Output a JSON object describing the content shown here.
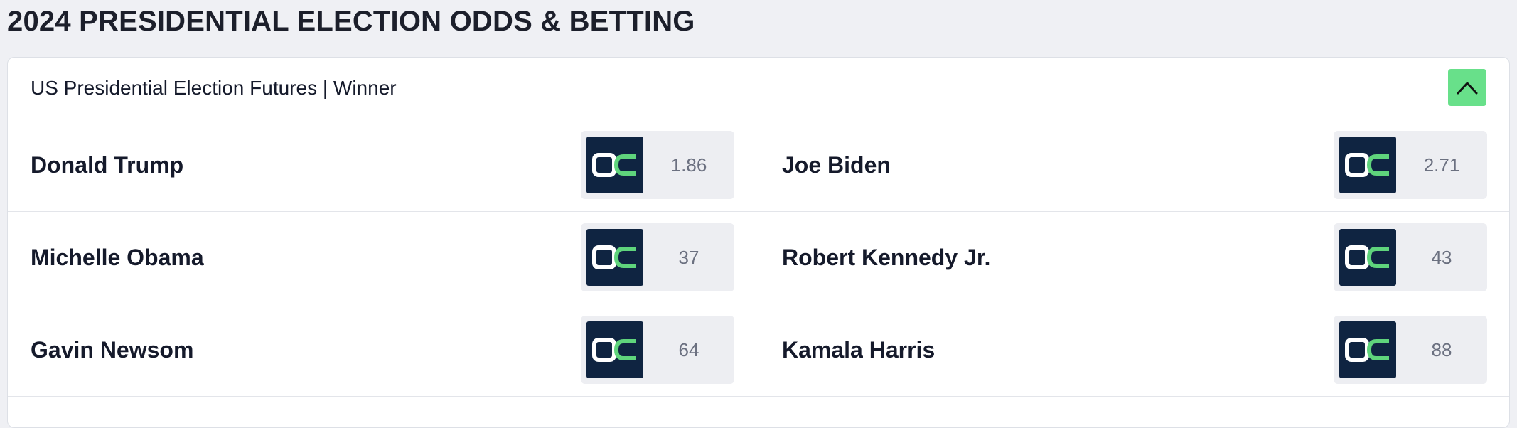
{
  "page": {
    "title": "2024 PRESIDENTIAL ELECTION ODDS & BETTING"
  },
  "market": {
    "title": "US Presidential Election Futures | Winner",
    "collapse_icon": "chevron-up-icon",
    "sportsbook_logo": "oc-logo-icon",
    "colors": {
      "accent": "#68e08a",
      "logo_bg": "#0f2441",
      "logo_green": "#5fd47c",
      "odds_bg": "#edeef2"
    },
    "rows": [
      [
        {
          "name": "Donald Trump",
          "odds": "1.86"
        },
        {
          "name": "Joe Biden",
          "odds": "2.71"
        }
      ],
      [
        {
          "name": "Michelle Obama",
          "odds": "37"
        },
        {
          "name": "Robert Kennedy Jr.",
          "odds": "43"
        }
      ],
      [
        {
          "name": "Gavin Newsom",
          "odds": "64"
        },
        {
          "name": "Kamala Harris",
          "odds": "88"
        }
      ]
    ]
  }
}
